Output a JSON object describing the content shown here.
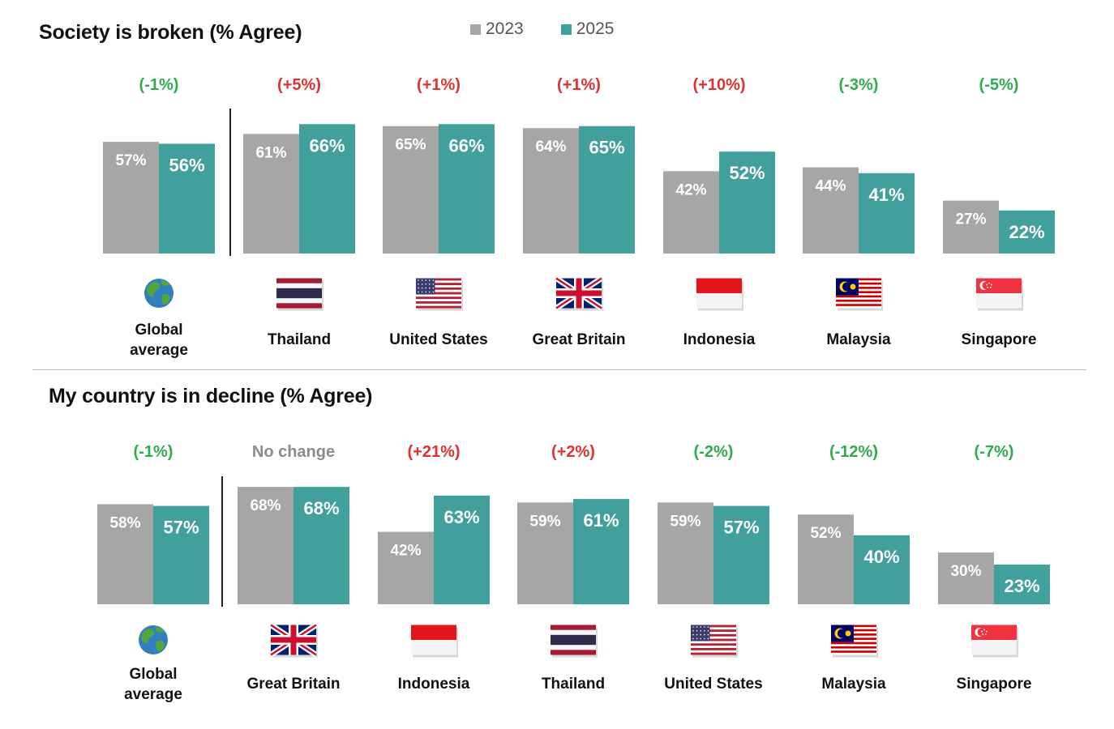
{
  "colors": {
    "y2023": "#a6a6a6",
    "y2025": "#41a09c",
    "increase": "#e0302f",
    "decrease": "#2eaa4f",
    "neutral": "#8c8c8c"
  },
  "legend": [
    "2023",
    "2025"
  ],
  "chart_data": [
    {
      "type": "bar",
      "title": "Society is broken (% Agree)",
      "categories": [
        "Global average",
        "Thailand",
        "United States",
        "Great Britain",
        "Indonesia",
        "Malaysia",
        "Singapore"
      ],
      "category_lines": [
        [
          "Global",
          "average"
        ],
        [
          "Thailand"
        ],
        [
          "United States"
        ],
        [
          "Great Britain"
        ],
        [
          "Indonesia"
        ],
        [
          "Malaysia"
        ],
        [
          "Singapore"
        ]
      ],
      "flags": [
        "globe-icon",
        "thailand-flag-icon",
        "us-flag-icon",
        "uk-flag-icon",
        "indonesia-flag-icon",
        "malaysia-flag-icon",
        "singapore-flag-icon"
      ],
      "series": [
        {
          "name": "2023",
          "values": [
            57,
            61,
            65,
            64,
            42,
            44,
            27
          ],
          "labels": [
            "57%",
            "61%",
            "65%",
            "64%",
            "42%",
            "44%",
            "27%"
          ]
        },
        {
          "name": "2025",
          "values": [
            56,
            66,
            66,
            65,
            52,
            41,
            22
          ],
          "labels": [
            "56%",
            "66%",
            "66%",
            "65%",
            "52%",
            "41%",
            "22%"
          ]
        }
      ],
      "changes": [
        "(-1%)",
        "(+5%)",
        "(+1%)",
        "(+1%)",
        "(+10%)",
        "(-3%)",
        "(-5%)"
      ],
      "change_direction": [
        "decrease",
        "increase",
        "increase",
        "increase",
        "increase",
        "decrease",
        "decrease"
      ],
      "ylim": [
        0,
        100
      ]
    },
    {
      "type": "bar",
      "title": "My country is in decline (% Agree)",
      "categories": [
        "Global average",
        "Great Britain",
        "Indonesia",
        "Thailand",
        "United States",
        "Malaysia",
        "Singapore"
      ],
      "category_lines": [
        [
          "Global",
          "average"
        ],
        [
          "Great Britain"
        ],
        [
          "Indonesia"
        ],
        [
          "Thailand"
        ],
        [
          "United States"
        ],
        [
          "Malaysia"
        ],
        [
          "Singapore"
        ]
      ],
      "flags": [
        "globe-icon",
        "uk-flag-icon",
        "indonesia-flag-icon",
        "thailand-flag-icon",
        "us-flag-icon",
        "malaysia-flag-icon",
        "singapore-flag-icon"
      ],
      "series": [
        {
          "name": "2023",
          "values": [
            58,
            68,
            42,
            59,
            59,
            52,
            30
          ],
          "labels": [
            "58%",
            "68%",
            "42%",
            "59%",
            "59%",
            "52%",
            "30%"
          ]
        },
        {
          "name": "2025",
          "values": [
            57,
            68,
            63,
            61,
            57,
            40,
            23
          ],
          "labels": [
            "57%",
            "68%",
            "63%",
            "61%",
            "57%",
            "40%",
            "23%"
          ]
        }
      ],
      "changes": [
        "(-1%)",
        "No change",
        "(+21%)",
        "(+2%)",
        "(-2%)",
        "(-12%)",
        "(-7%)"
      ],
      "change_direction": [
        "decrease",
        "neutral",
        "increase",
        "increase",
        "decrease",
        "decrease",
        "decrease"
      ],
      "ylim": [
        0,
        100
      ]
    }
  ]
}
